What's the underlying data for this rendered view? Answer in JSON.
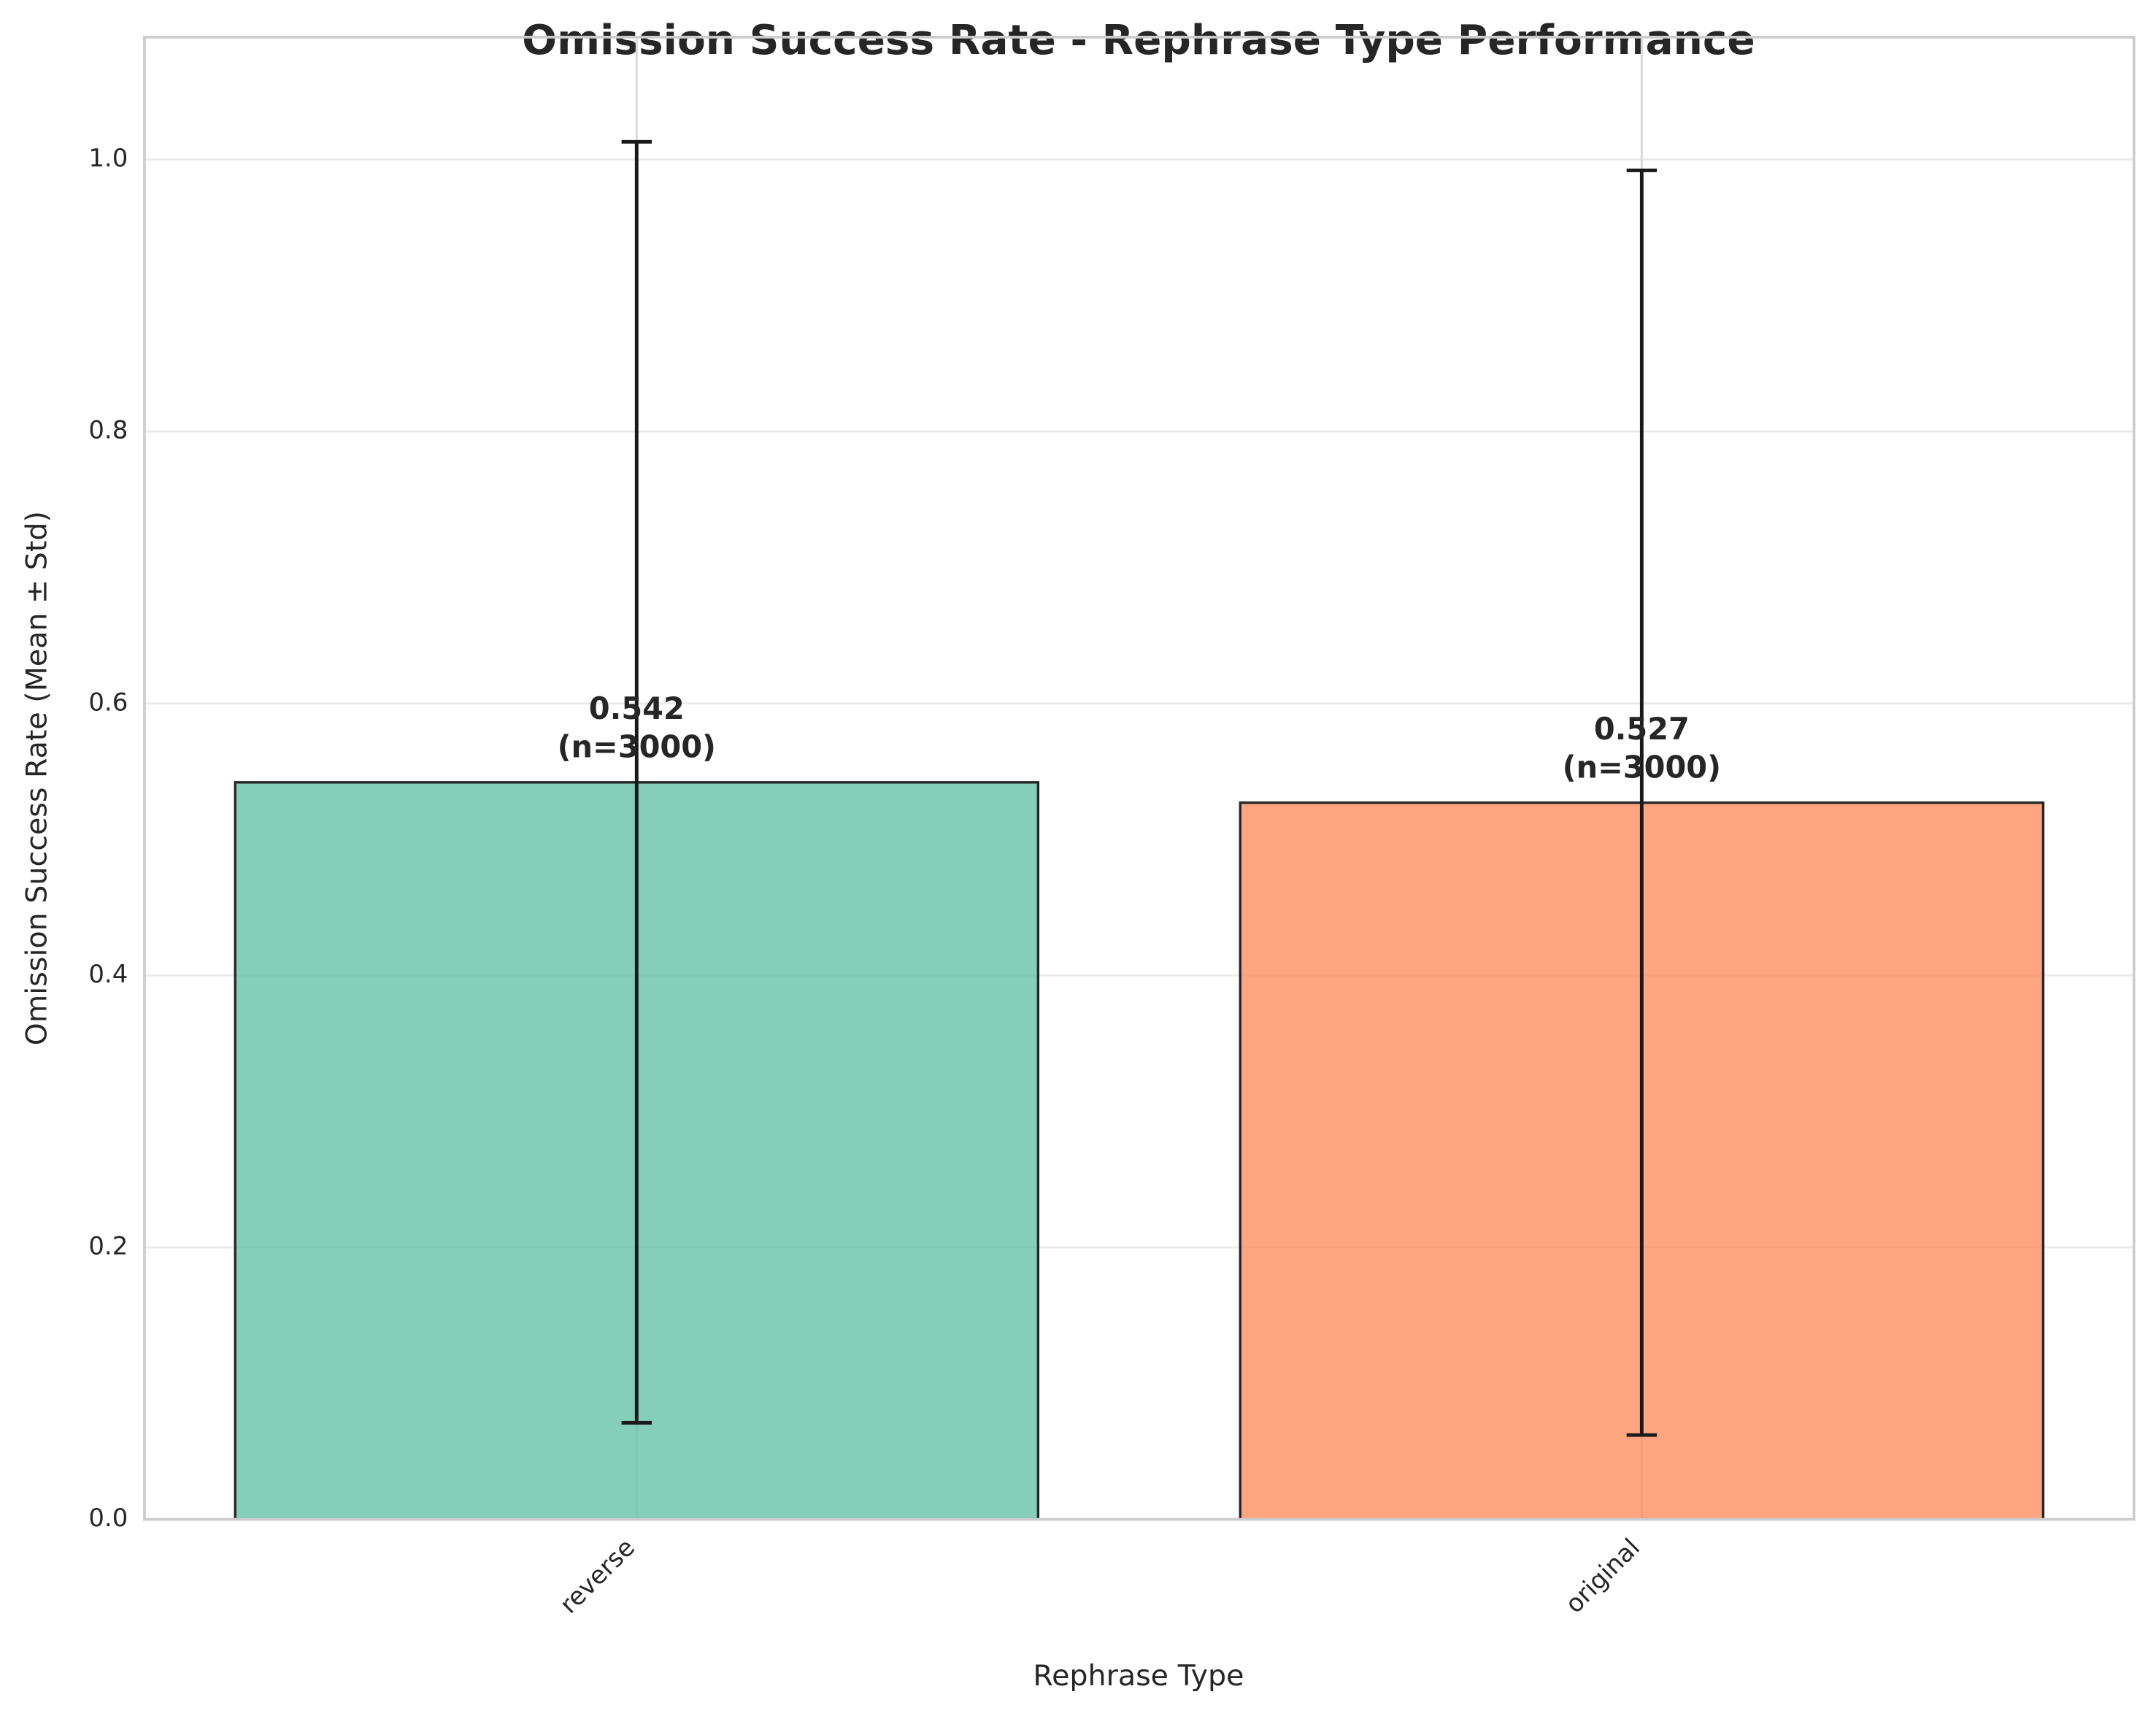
{
  "chart_data": {
    "type": "bar",
    "title": "Omission Success Rate - Rephrase Type Performance",
    "xlabel": "Rephrase Type",
    "ylabel": "Omission Success Rate (Mean ± Std)",
    "categories": [
      "reverse",
      "original"
    ],
    "values": [
      0.542,
      0.527
    ],
    "errors": [
      0.471,
      0.465
    ],
    "annotations": [
      "(n=3000)",
      "(n=3000)"
    ],
    "colors": [
      "#66c2a5",
      "#fc8d62"
    ],
    "ylim": [
      0,
      1.09
    ],
    "yticks": [
      {
        "value": 0,
        "label": "0.0"
      },
      0.2,
      0.4,
      0.6,
      0.8,
      {
        "value": 1,
        "label": "1.0"
      }
    ],
    "grid": true
  }
}
